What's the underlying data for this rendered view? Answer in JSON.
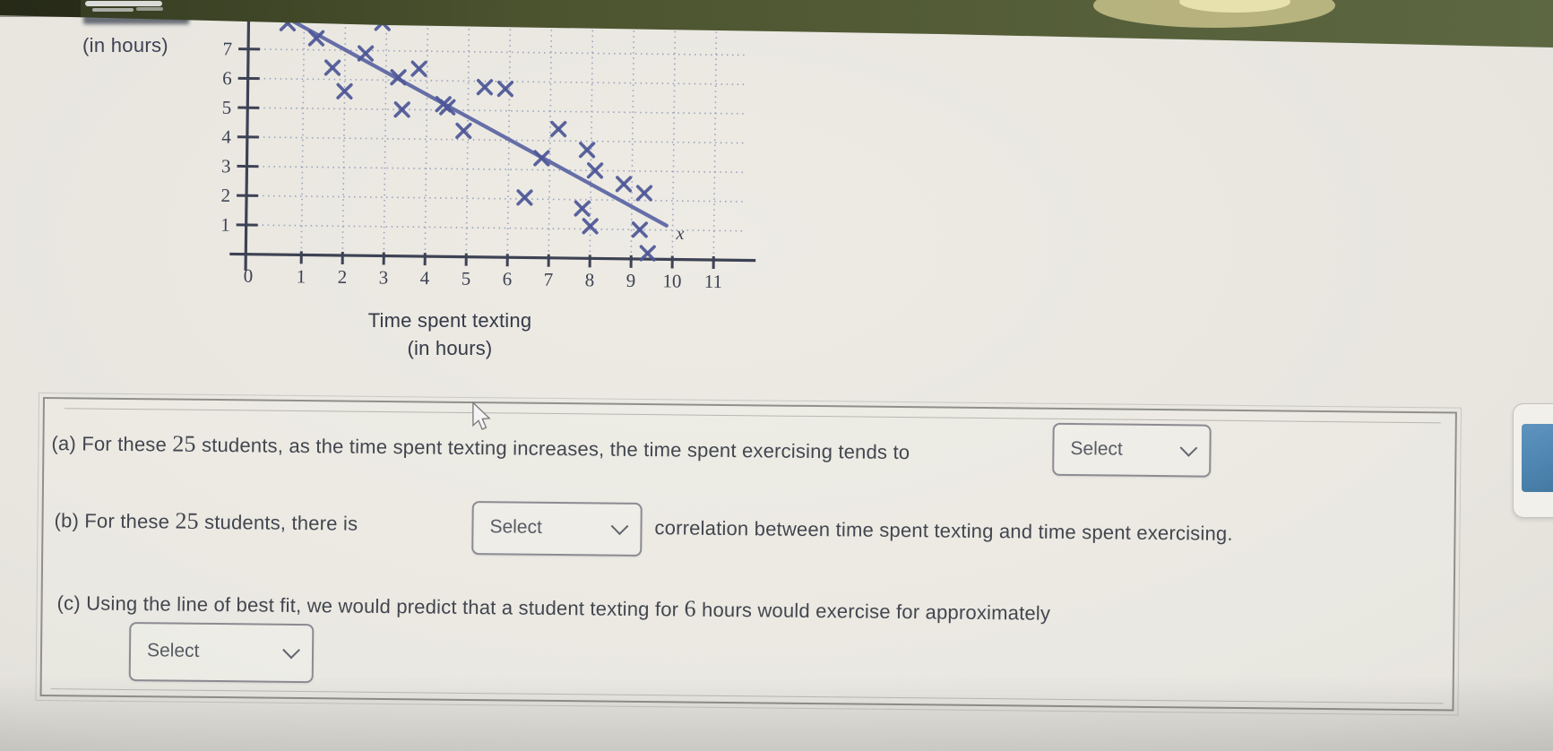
{
  "page": {
    "background": "#e7e5de",
    "top_band_colors": [
      "#343a21",
      "#4d5530",
      "#5d6842"
    ],
    "glare_color": "#d8cf96"
  },
  "chart_data": {
    "type": "scatter",
    "title": "",
    "ylabel": "(in hours)",
    "xlabel_lines": [
      "Time spent texting",
      "(in hours)"
    ],
    "x_axis_symbol": "x",
    "x_ticks": [
      0,
      1,
      2,
      3,
      4,
      5,
      6,
      7,
      8,
      9,
      10,
      11
    ],
    "y_ticks": [
      1,
      2,
      3,
      4,
      5,
      6,
      7
    ],
    "xlim": [
      0,
      11.7
    ],
    "ylim": [
      0,
      8.2
    ],
    "grid": true,
    "points": [
      [
        0.6,
        7.9
      ],
      [
        1.3,
        7.4
      ],
      [
        2.9,
        7.95
      ],
      [
        1.7,
        6.4
      ],
      [
        2.5,
        6.9
      ],
      [
        2.0,
        5.6
      ],
      [
        3.3,
        6.1
      ],
      [
        3.8,
        6.4
      ],
      [
        4.4,
        5.2
      ],
      [
        3.4,
        5.0
      ],
      [
        4.5,
        5.1
      ],
      [
        4.9,
        4.3
      ],
      [
        5.4,
        5.8
      ],
      [
        5.9,
        5.75
      ],
      [
        6.4,
        2.05
      ],
      [
        6.8,
        3.4
      ],
      [
        7.2,
        4.4
      ],
      [
        7.8,
        1.7
      ],
      [
        7.9,
        3.7
      ],
      [
        8.0,
        1.1
      ],
      [
        8.1,
        3.0
      ],
      [
        8.8,
        2.55
      ],
      [
        9.2,
        1.0
      ],
      [
        9.3,
        2.25
      ],
      [
        9.4,
        0.2
      ]
    ],
    "best_fit_line": {
      "x1": 0.55,
      "y1": 8.1,
      "x2": 9.85,
      "y2": 1.15
    },
    "marker": "x",
    "colors": {
      "marker": "#4d5797",
      "line": "#5b64a3",
      "axis": "#3d4254",
      "grid": "#9aa3bd",
      "tick_text": "#3d4254"
    }
  },
  "questions": {
    "a": {
      "prefix": "(a)",
      "before_num": "For these",
      "num": "25",
      "after_num": "students, as the time spent texting increases, the time spent exercising tends to",
      "select": "Select"
    },
    "b": {
      "prefix": "(b)",
      "before_num": "For these",
      "num": "25",
      "after_num": "students, there is",
      "select": "Select",
      "after": "correlation between time spent texting and time spent exercising."
    },
    "c": {
      "prefix": "(c)",
      "before_num": "Using the line of best fit, we would predict that a student texting for",
      "num": "6",
      "after_num": "hours would exercise for approximately",
      "select": "Select"
    }
  }
}
